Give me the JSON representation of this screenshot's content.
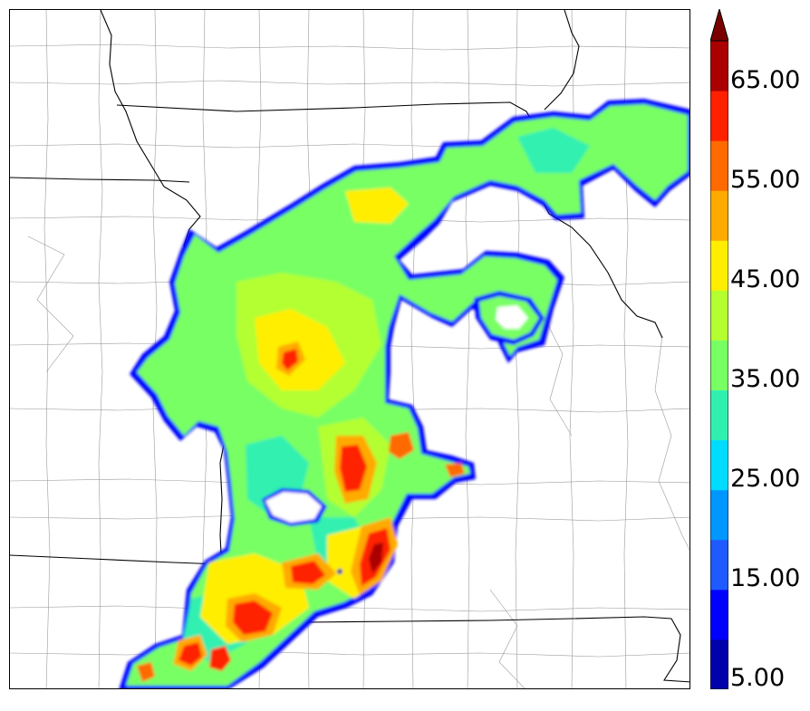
{
  "legend": {
    "colors": [
      "#0000aa",
      "#0000ff",
      "#1e5aff",
      "#0096ff",
      "#00dcff",
      "#30f0b0",
      "#78ff64",
      "#b4ff30",
      "#ffee00",
      "#ffaa00",
      "#ff6a00",
      "#ff2000",
      "#aa0000"
    ],
    "extend_color": "#7a0000",
    "bounds": [
      5,
      10,
      15,
      20,
      25,
      30,
      35,
      40,
      45,
      50,
      55,
      60,
      65,
      70
    ],
    "tick_labels": [
      "5.00",
      "15.00",
      "25.00",
      "35.00",
      "45.00",
      "55.00",
      "65.00"
    ]
  }
}
